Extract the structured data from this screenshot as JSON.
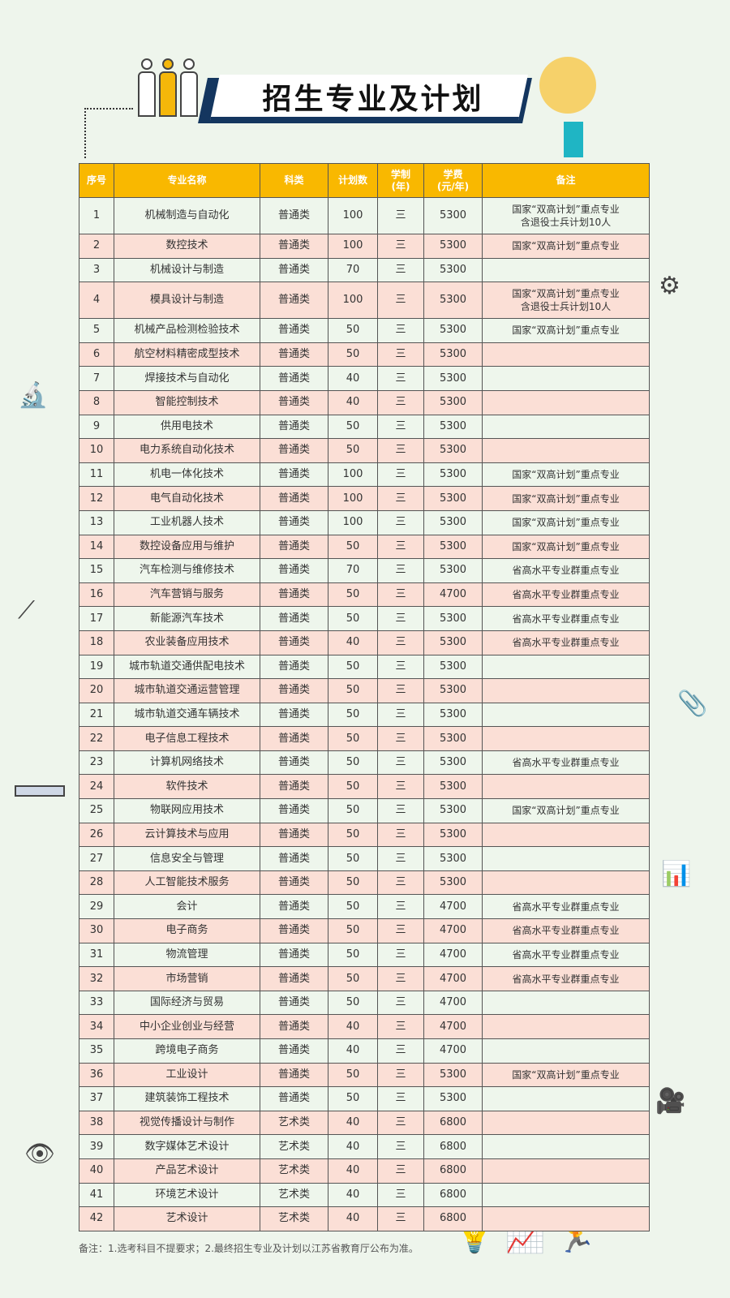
{
  "title": "招生专业及计划",
  "colors": {
    "header": "#f9b800",
    "row_even": "#eef6ec",
    "row_odd": "#fbdfd6",
    "banner": "#14365f"
  },
  "table": {
    "headers": [
      "序号",
      "专业名称",
      "科类",
      "计划数",
      "学制\n(年)",
      "学费\n(元/年)",
      "备注"
    ],
    "rows": [
      [
        "1",
        "机械制造与自动化",
        "普通类",
        "100",
        "三",
        "5300",
        "国家“双高计划”重点专业\n含退役士兵计划10人"
      ],
      [
        "2",
        "数控技术",
        "普通类",
        "100",
        "三",
        "5300",
        "国家“双高计划”重点专业"
      ],
      [
        "3",
        "机械设计与制造",
        "普通类",
        "70",
        "三",
        "5300",
        ""
      ],
      [
        "4",
        "模具设计与制造",
        "普通类",
        "100",
        "三",
        "5300",
        "国家“双高计划”重点专业\n含退役士兵计划10人"
      ],
      [
        "5",
        "机械产品检测检验技术",
        "普通类",
        "50",
        "三",
        "5300",
        "国家“双高计划”重点专业"
      ],
      [
        "6",
        "航空材料精密成型技术",
        "普通类",
        "50",
        "三",
        "5300",
        ""
      ],
      [
        "7",
        "焊接技术与自动化",
        "普通类",
        "40",
        "三",
        "5300",
        ""
      ],
      [
        "8",
        "智能控制技术",
        "普通类",
        "40",
        "三",
        "5300",
        ""
      ],
      [
        "9",
        "供用电技术",
        "普通类",
        "50",
        "三",
        "5300",
        ""
      ],
      [
        "10",
        "电力系统自动化技术",
        "普通类",
        "50",
        "三",
        "5300",
        ""
      ],
      [
        "11",
        "机电一体化技术",
        "普通类",
        "100",
        "三",
        "5300",
        "国家“双高计划”重点专业"
      ],
      [
        "12",
        "电气自动化技术",
        "普通类",
        "100",
        "三",
        "5300",
        "国家“双高计划”重点专业"
      ],
      [
        "13",
        "工业机器人技术",
        "普通类",
        "100",
        "三",
        "5300",
        "国家“双高计划”重点专业"
      ],
      [
        "14",
        "数控设备应用与维护",
        "普通类",
        "50",
        "三",
        "5300",
        "国家“双高计划”重点专业"
      ],
      [
        "15",
        "汽车检测与维修技术",
        "普通类",
        "70",
        "三",
        "5300",
        "省高水平专业群重点专业"
      ],
      [
        "16",
        "汽车营销与服务",
        "普通类",
        "50",
        "三",
        "4700",
        "省高水平专业群重点专业"
      ],
      [
        "17",
        "新能源汽车技术",
        "普通类",
        "50",
        "三",
        "5300",
        "省高水平专业群重点专业"
      ],
      [
        "18",
        "农业装备应用技术",
        "普通类",
        "40",
        "三",
        "5300",
        "省高水平专业群重点专业"
      ],
      [
        "19",
        "城市轨道交通供配电技术",
        "普通类",
        "50",
        "三",
        "5300",
        ""
      ],
      [
        "20",
        "城市轨道交通运营管理",
        "普通类",
        "50",
        "三",
        "5300",
        ""
      ],
      [
        "21",
        "城市轨道交通车辆技术",
        "普通类",
        "50",
        "三",
        "5300",
        ""
      ],
      [
        "22",
        "电子信息工程技术",
        "普通类",
        "50",
        "三",
        "5300",
        ""
      ],
      [
        "23",
        "计算机网络技术",
        "普通类",
        "50",
        "三",
        "5300",
        "省高水平专业群重点专业"
      ],
      [
        "24",
        "软件技术",
        "普通类",
        "50",
        "三",
        "5300",
        ""
      ],
      [
        "25",
        "物联网应用技术",
        "普通类",
        "50",
        "三",
        "5300",
        "国家“双高计划”重点专业"
      ],
      [
        "26",
        "云计算技术与应用",
        "普通类",
        "50",
        "三",
        "5300",
        ""
      ],
      [
        "27",
        "信息安全与管理",
        "普通类",
        "50",
        "三",
        "5300",
        ""
      ],
      [
        "28",
        "人工智能技术服务",
        "普通类",
        "50",
        "三",
        "5300",
        ""
      ],
      [
        "29",
        "会计",
        "普通类",
        "50",
        "三",
        "4700",
        "省高水平专业群重点专业"
      ],
      [
        "30",
        "电子商务",
        "普通类",
        "50",
        "三",
        "4700",
        "省高水平专业群重点专业"
      ],
      [
        "31",
        "物流管理",
        "普通类",
        "50",
        "三",
        "4700",
        "省高水平专业群重点专业"
      ],
      [
        "32",
        "市场营销",
        "普通类",
        "50",
        "三",
        "4700",
        "省高水平专业群重点专业"
      ],
      [
        "33",
        "国际经济与贸易",
        "普通类",
        "50",
        "三",
        "4700",
        ""
      ],
      [
        "34",
        "中小企业创业与经营",
        "普通类",
        "40",
        "三",
        "4700",
        ""
      ],
      [
        "35",
        "跨境电子商务",
        "普通类",
        "40",
        "三",
        "4700",
        ""
      ],
      [
        "36",
        "工业设计",
        "普通类",
        "50",
        "三",
        "5300",
        "国家“双高计划”重点专业"
      ],
      [
        "37",
        "建筑装饰工程技术",
        "普通类",
        "50",
        "三",
        "5300",
        ""
      ],
      [
        "38",
        "视觉传播设计与制作",
        "艺术类",
        "40",
        "三",
        "6800",
        ""
      ],
      [
        "39",
        "数字媒体艺术设计",
        "艺术类",
        "40",
        "三",
        "6800",
        ""
      ],
      [
        "40",
        "产品艺术设计",
        "艺术类",
        "40",
        "三",
        "6800",
        ""
      ],
      [
        "41",
        "环境艺术设计",
        "艺术类",
        "40",
        "三",
        "6800",
        ""
      ],
      [
        "42",
        "艺术设计",
        "艺术类",
        "40",
        "三",
        "6800",
        ""
      ]
    ]
  },
  "footnote": "备注：1.选考科目不提要求；2.最终招生专业及计划以江苏省教育厅公布为准。"
}
